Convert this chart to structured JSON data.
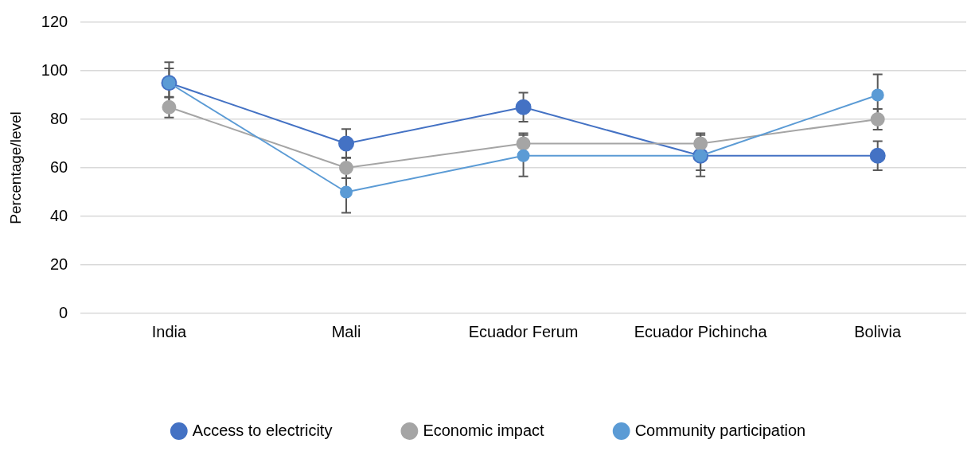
{
  "chart_data": {
    "type": "line",
    "ylabel": "Percentage/level",
    "categories": [
      "India",
      "Mali",
      "Ecuador Ferum",
      "Ecuador Pichincha",
      "Bolivia"
    ],
    "series": [
      {
        "name": "Access to electricity",
        "color": "#4472c4",
        "values": [
          95,
          70,
          85,
          65,
          65
        ],
        "errors": [
          6,
          6,
          6,
          6,
          6
        ]
      },
      {
        "name": "Economic impact",
        "color": "#a5a5a5",
        "values": [
          85,
          60,
          70,
          70,
          80
        ],
        "errors": [
          4.3,
          4.3,
          4.3,
          4.3,
          4.3
        ]
      },
      {
        "name": "Community participation",
        "color": "#5b9bd5",
        "values": [
          95,
          50,
          65,
          65,
          90
        ],
        "errors": [
          8.5,
          8.5,
          8.5,
          8.5,
          8.5
        ]
      }
    ],
    "ylim": [
      0,
      120
    ],
    "yticks": [
      0,
      20,
      40,
      60,
      80,
      100,
      120
    ],
    "grid": "y",
    "legend": "bottom",
    "marker": "circle",
    "line_style": "solid"
  }
}
